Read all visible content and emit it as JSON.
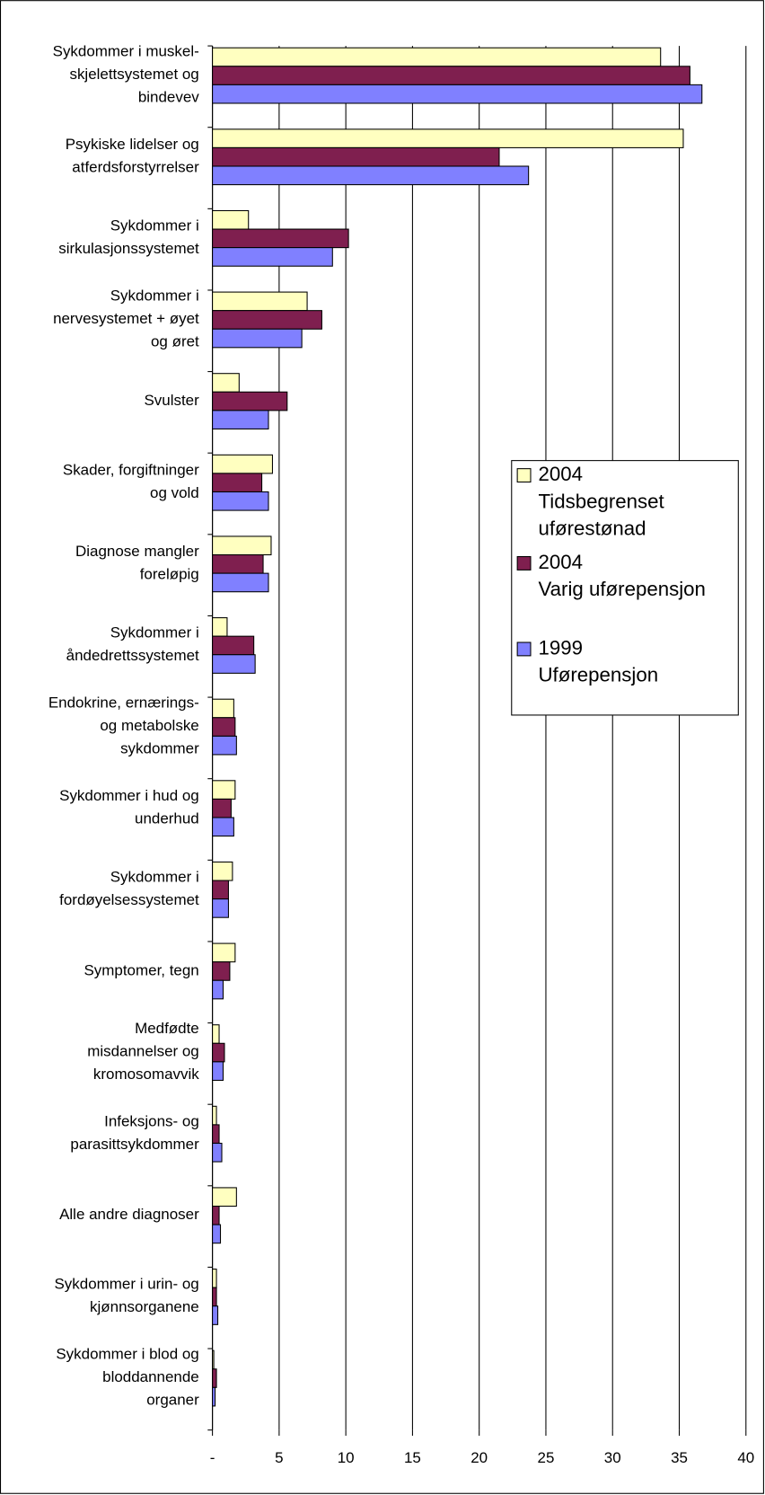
{
  "chart_data": {
    "type": "barh",
    "categories": [
      "Sykdommer i muskel-\nskjelettsystemet og\nbindevev",
      "Psykiske lidelser og\natferdsforstyrrelser",
      "Sykdommer i\nsirkulasjonssystemet",
      "Sykdommer i\nnervesystemet + øyet\nog øret",
      "Svulster",
      "Skader, forgiftninger\nog vold",
      "Diagnose mangler\nforeløpig",
      "Sykdommer i\nåndedrettssystemet",
      "Endokrine, ernærings-\nog metabolske\nsykdommer",
      "Sykdommer i hud og\nunderhud",
      "Sykdommer i\nfordøyelsessystemet",
      "Symptomer, tegn",
      "Medfødte\nmisdannelser og\nkromosomavvik",
      "Infeksjons- og\nparasittsykdommer",
      "Alle andre diagnoser",
      "Sykdommer i urin- og\nkjønnsorganene",
      "Sykdommer i blod og\nbloddannende\norganer"
    ],
    "series": [
      {
        "name": "2004\nTidsbegrenset\nuførestønad",
        "color": "#ffffc0",
        "values": [
          33.6,
          35.3,
          2.7,
          7.1,
          2.0,
          4.5,
          4.4,
          1.1,
          1.6,
          1.7,
          1.5,
          1.7,
          0.5,
          0.3,
          1.8,
          0.3,
          0.1
        ]
      },
      {
        "name": "2004\nVarig uførepensjon",
        "color": "#7f1f4f",
        "values": [
          35.8,
          21.5,
          10.2,
          8.2,
          5.6,
          3.7,
          3.8,
          3.1,
          1.7,
          1.4,
          1.2,
          1.3,
          0.9,
          0.5,
          0.5,
          0.3,
          0.3
        ]
      },
      {
        "name": "1999\nUførepensjon",
        "color": "#8080ff",
        "values": [
          36.7,
          23.7,
          9.0,
          6.7,
          4.2,
          4.2,
          4.2,
          3.2,
          1.8,
          1.6,
          1.2,
          0.8,
          0.8,
          0.7,
          0.6,
          0.4,
          0.2
        ]
      }
    ],
    "xlim": [
      0,
      40
    ],
    "xticks": [
      {
        "value": 0,
        "label": "-"
      },
      5,
      10,
      15,
      20,
      25,
      30,
      35,
      40
    ],
    "grid": true
  }
}
